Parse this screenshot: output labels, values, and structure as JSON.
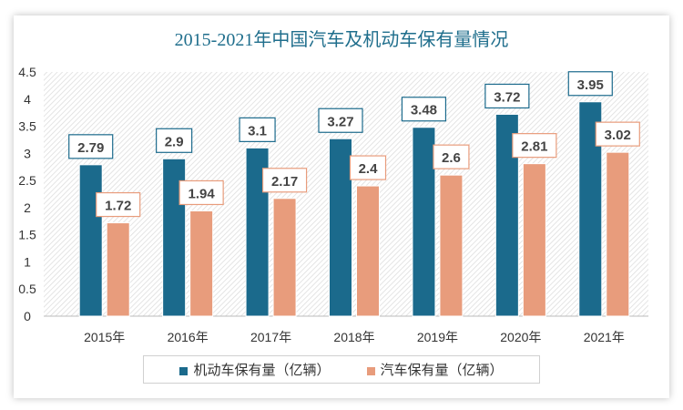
{
  "chart_data": {
    "type": "bar",
    "title": "2015-2021年中国汽车及机动车保有量情况",
    "categories": [
      "2015年",
      "2016年",
      "2017年",
      "2018年",
      "2019年",
      "2020年",
      "2021年"
    ],
    "series": [
      {
        "name": "机动车保有量（亿辆）",
        "color": "#1b6a8c",
        "values": [
          2.79,
          2.9,
          3.1,
          3.27,
          3.48,
          3.72,
          3.95
        ]
      },
      {
        "name": "汽车保有量（亿辆）",
        "color": "#e89c7c",
        "values": [
          1.72,
          1.94,
          2.17,
          2.4,
          2.6,
          2.81,
          3.02
        ]
      }
    ],
    "yticks": [
      "0",
      "0.5",
      "1",
      "1.5",
      "2",
      "2.5",
      "3",
      "3.5",
      "4",
      "4.5"
    ],
    "ylim": [
      0,
      4.5
    ],
    "legend": "bottom",
    "grid": false
  }
}
